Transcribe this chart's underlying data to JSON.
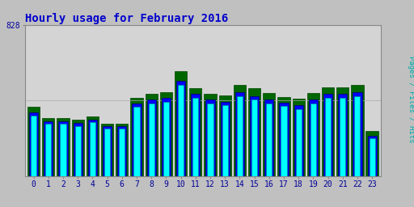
{
  "title": "Hourly usage for February 2016",
  "title_color": "#0000cc",
  "title_fontsize": 10,
  "background_color": "#c0c0c0",
  "plot_bg_color": "#d4d4d4",
  "hours": [
    0,
    1,
    2,
    3,
    4,
    5,
    6,
    7,
    8,
    9,
    10,
    11,
    12,
    13,
    14,
    15,
    16,
    17,
    18,
    19,
    20,
    21,
    22,
    23
  ],
  "pages": [
    330,
    285,
    285,
    275,
    295,
    258,
    258,
    378,
    398,
    408,
    500,
    428,
    398,
    388,
    438,
    418,
    398,
    382,
    368,
    398,
    428,
    428,
    438,
    205
  ],
  "files": [
    350,
    300,
    300,
    290,
    310,
    272,
    272,
    398,
    418,
    428,
    522,
    448,
    418,
    408,
    458,
    438,
    418,
    402,
    388,
    418,
    448,
    448,
    458,
    220
  ],
  "hits": [
    380,
    318,
    318,
    308,
    328,
    286,
    286,
    430,
    450,
    460,
    572,
    480,
    450,
    440,
    500,
    480,
    455,
    434,
    424,
    455,
    486,
    486,
    500,
    246
  ],
  "pages_color": "#00ffff",
  "pages_edge": "#008888",
  "files_color": "#0000ff",
  "files_edge": "#000066",
  "hits_color": "#006600",
  "hits_edge": "#004400",
  "max_label": "828",
  "ylim_max": 828,
  "bar_width": 0.28,
  "ylabel": "Pages / Files / Hits",
  "ylabel_color": "#00aaaa"
}
